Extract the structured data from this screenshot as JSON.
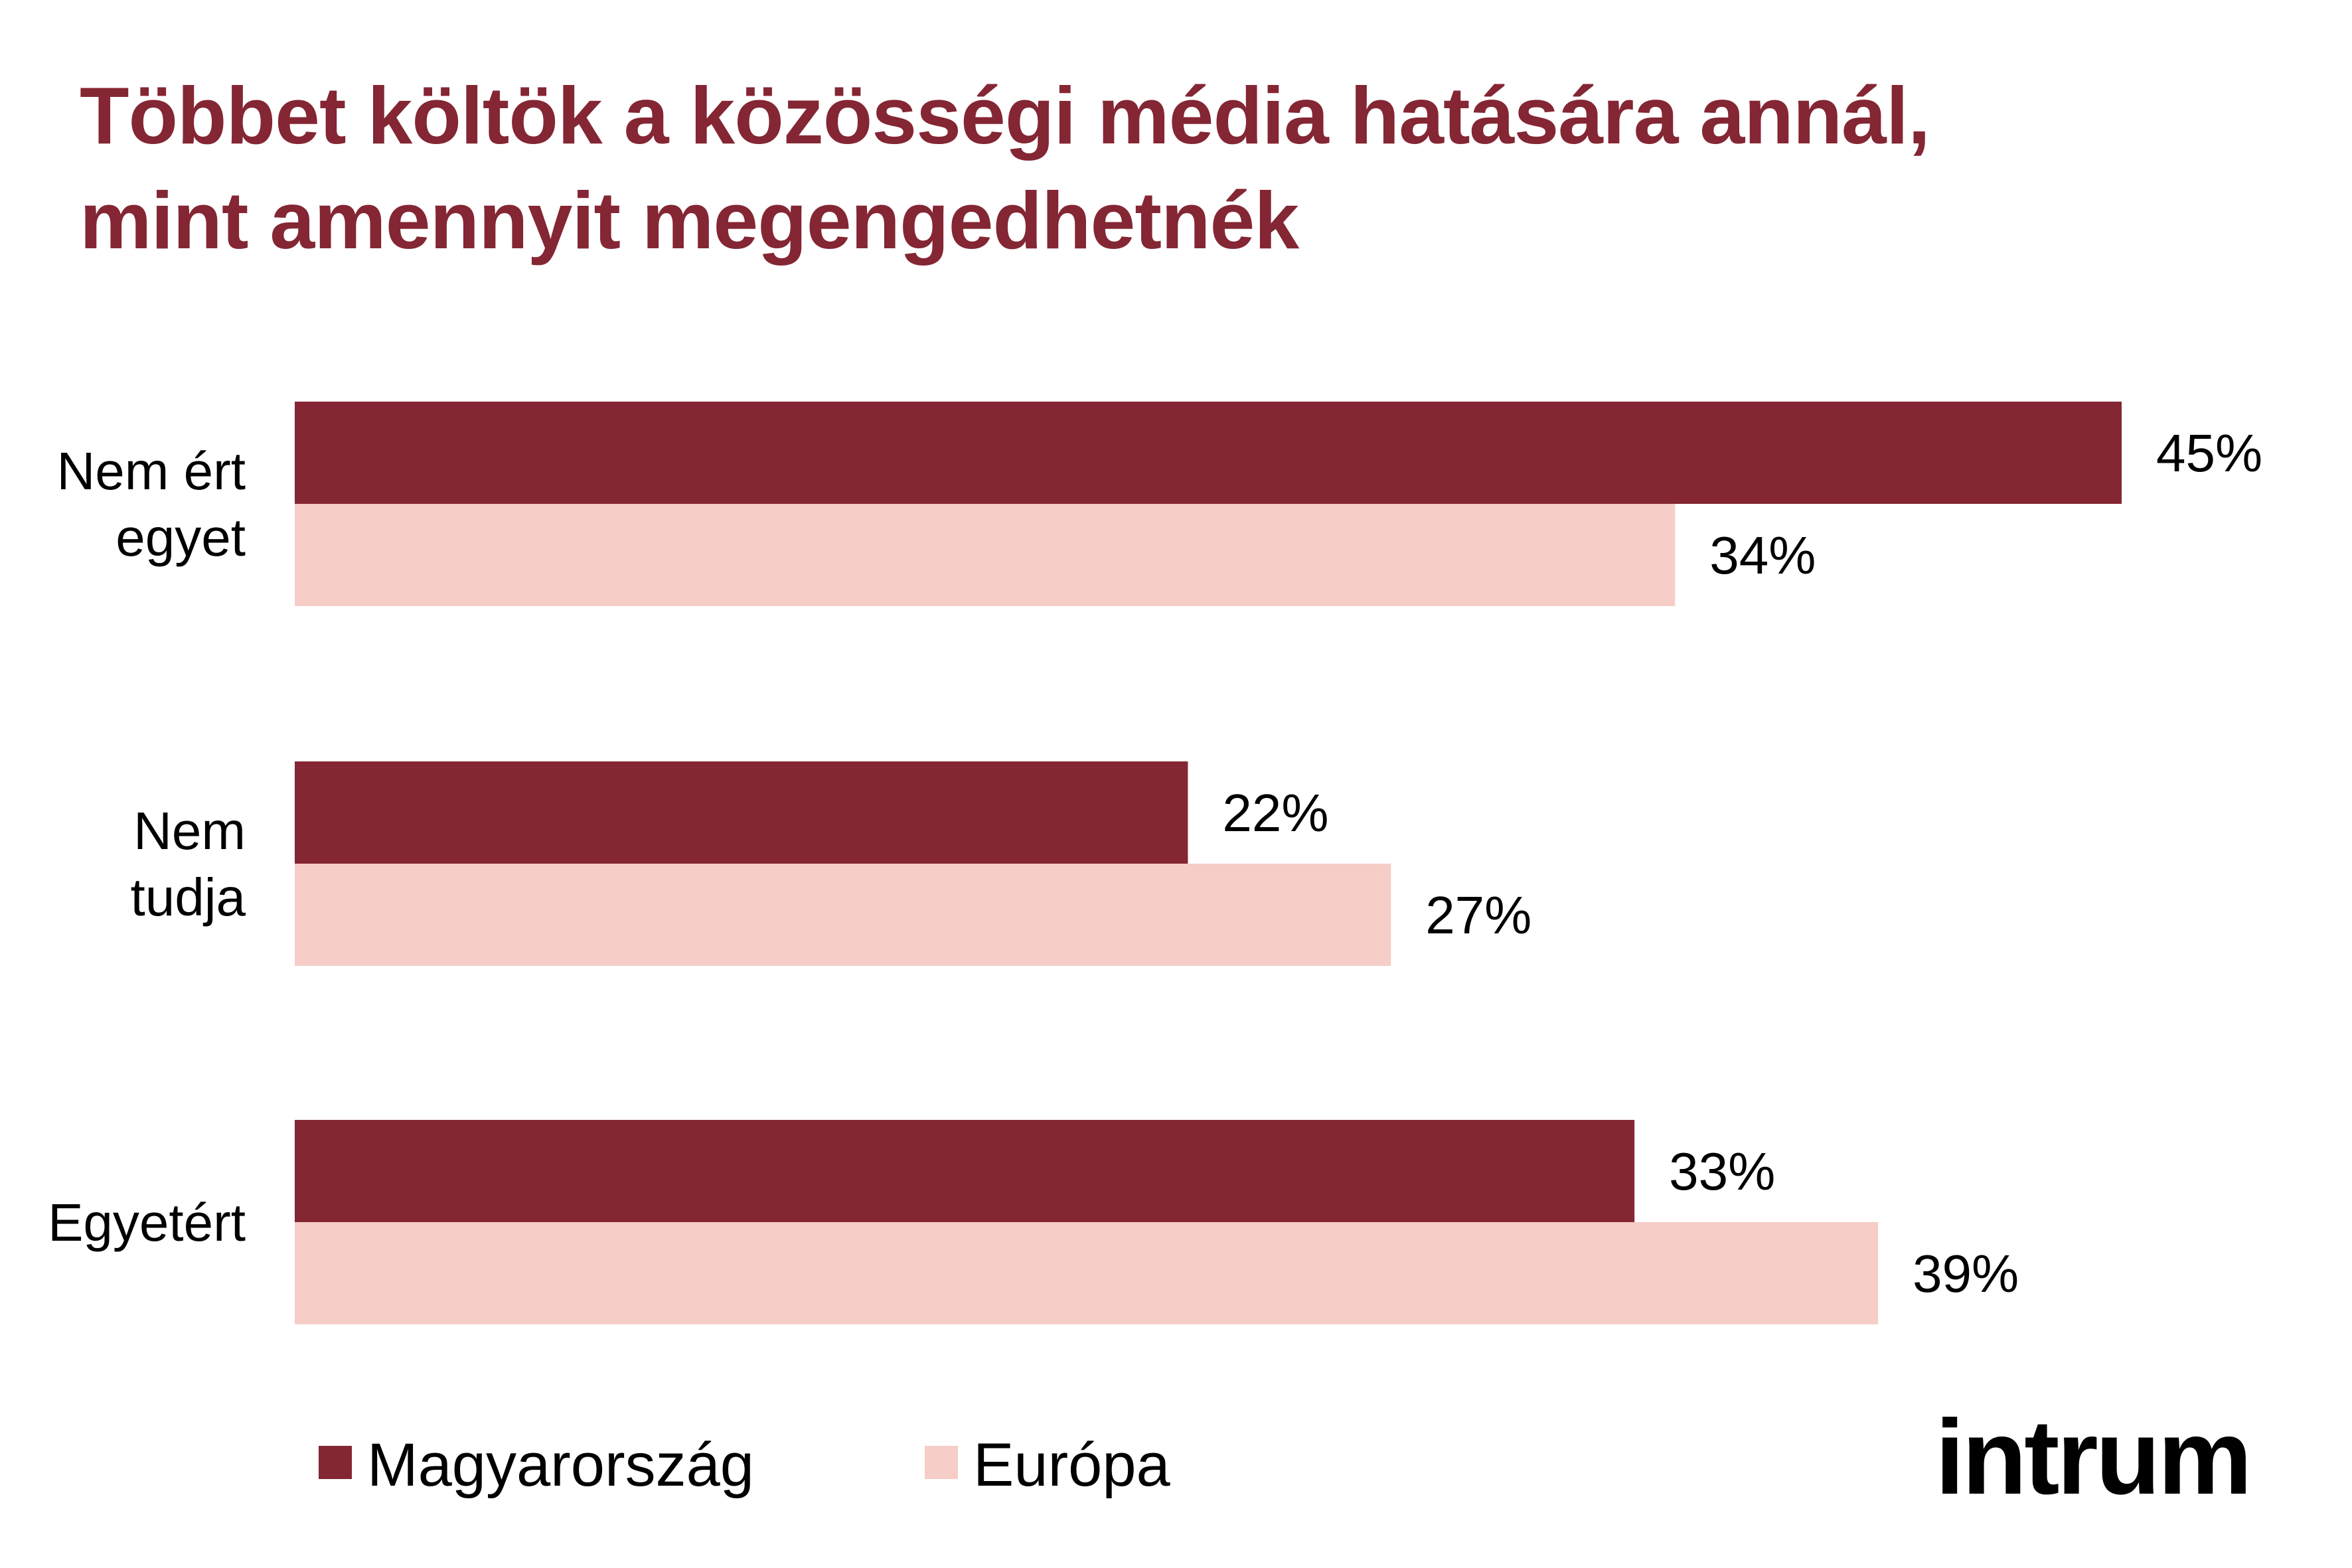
{
  "title": {
    "line1": "Többet költök a közösségi média hatására annál,",
    "line2": "mint amennyit megengedhetnék"
  },
  "colors": {
    "title": "#842633",
    "magyarorszag": "#842633",
    "europa": "#F6CDC7",
    "text": "#000000"
  },
  "chart_data": {
    "type": "bar",
    "orientation": "horizontal",
    "title": "Többet költök a közösségi média hatására annál, mint amennyit megengedhetnék",
    "categories": [
      [
        "Nem ért",
        "egyet"
      ],
      [
        "Nem",
        "tudja"
      ],
      [
        "Egyetért"
      ]
    ],
    "series": [
      {
        "name": "Magyarország",
        "values": [
          45,
          22,
          33
        ],
        "labels": [
          "45%",
          "22%",
          "33%"
        ]
      },
      {
        "name": "Európa",
        "values": [
          34,
          27,
          39
        ],
        "labels": [
          "34%",
          "27%",
          "39%"
        ]
      }
    ],
    "xlim": [
      0,
      45
    ],
    "grid": false,
    "legend": "bottom-left"
  },
  "logo": {
    "text": "intrum"
  }
}
